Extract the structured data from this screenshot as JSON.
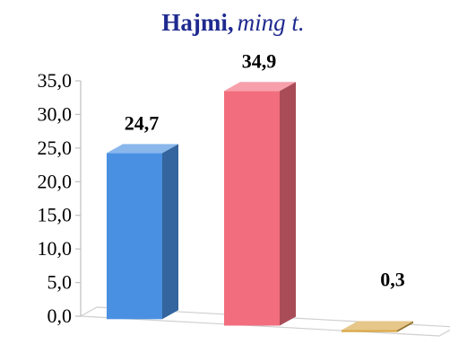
{
  "chart_data": {
    "type": "bar",
    "title": "Hajmi,",
    "subtitle": "ming t.",
    "xlabel": "",
    "ylabel": "",
    "ylim": [
      0,
      35
    ],
    "ytick_step": 5,
    "ytick_labels": [
      "0,0",
      "5,0",
      "10,0",
      "15,0",
      "20,0",
      "25,0",
      "30,0",
      "35,0"
    ],
    "grid": false,
    "categories": [
      "",
      "",
      ""
    ],
    "values": [
      24.7,
      34.9,
      0.3
    ],
    "data_labels": [
      "24,7",
      "34,9",
      "0,3"
    ],
    "colors": [
      "#4a90e2",
      "#f26d7d",
      "#d9a94a"
    ]
  }
}
